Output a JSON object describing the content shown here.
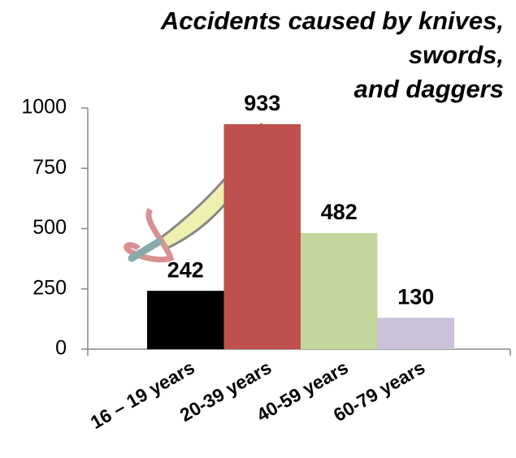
{
  "chart_data": {
    "type": "bar",
    "title": [
      "Accidents caused by knives,",
      "swords,",
      "and daggers"
    ],
    "categories": [
      "16 – 19 years",
      "20-39 years",
      "40-59 years",
      "60-79 years"
    ],
    "values": [
      242,
      933,
      482,
      130
    ],
    "colors": [
      "#000000",
      "#c0504d",
      "#c3d69b",
      "#ccc1da"
    ],
    "ylim": [
      0,
      1000
    ],
    "yticks": [
      0,
      250,
      500,
      750,
      1000
    ],
    "grid": false
  }
}
